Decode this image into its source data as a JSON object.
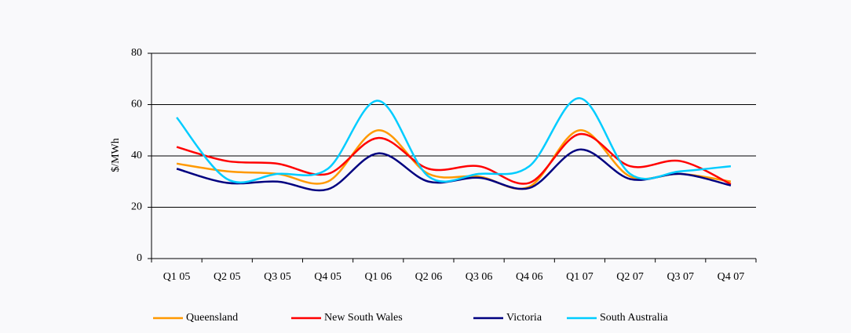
{
  "chart_data": {
    "type": "line",
    "categories": [
      "Q1 05",
      "Q2 05",
      "Q3 05",
      "Q4 05",
      "Q1 06",
      "Q2 06",
      "Q3 06",
      "Q4 06",
      "Q1 07",
      "Q2 07",
      "Q3 07",
      "Q4 07"
    ],
    "y_label": "$/MWh",
    "ylim": [
      0,
      80
    ],
    "yticks": [
      0,
      20,
      40,
      60,
      80
    ],
    "grid": true,
    "legend": "bottom",
    "series": [
      {
        "name": "Queensland",
        "color": "#ff9900",
        "values": [
          37,
          34,
          33,
          30,
          50,
          33,
          32,
          28,
          50,
          32,
          33,
          30
        ]
      },
      {
        "name": "New South Wales",
        "color": "#ff0000",
        "values": [
          43.5,
          38,
          37,
          33,
          47,
          35,
          36,
          29.5,
          48.5,
          36,
          38,
          29
        ]
      },
      {
        "name": "Victoria",
        "color": "#000080",
        "values": [
          35,
          29.5,
          30,
          27,
          41,
          30,
          31.5,
          27.5,
          42.5,
          31,
          33,
          28.5
        ]
      },
      {
        "name": "South Australia",
        "color": "#00ccff",
        "values": [
          55,
          31,
          33,
          35,
          61.5,
          32,
          33,
          36,
          62.5,
          33,
          34,
          36
        ]
      }
    ]
  }
}
